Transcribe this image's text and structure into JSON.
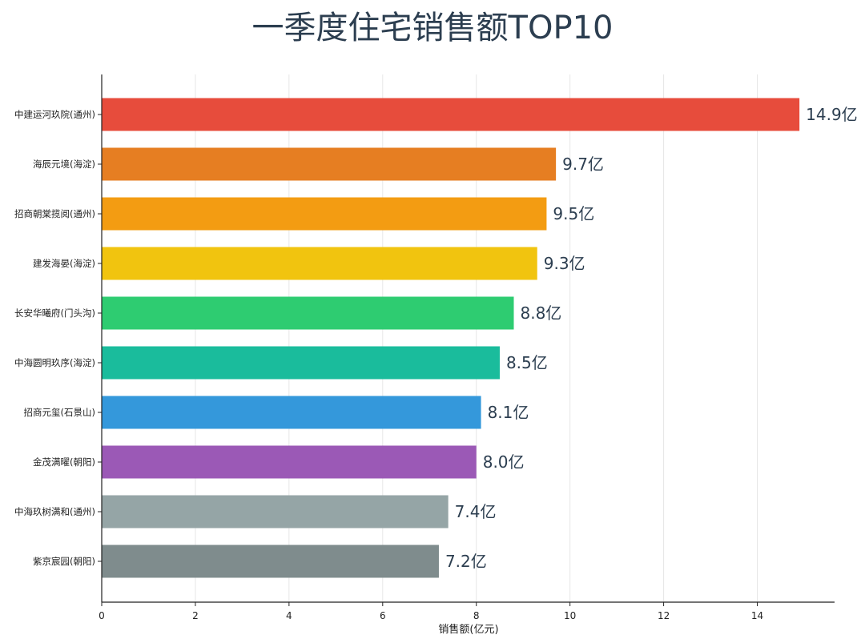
{
  "chart_data": {
    "type": "bar",
    "orientation": "horizontal",
    "title": "一季度住宅销售额TOP10",
    "xlabel": "销售额(亿元)",
    "ylabel": "",
    "xlim": [
      0,
      15.65
    ],
    "xticks": [
      0,
      2,
      4,
      6,
      8,
      10,
      12,
      14
    ],
    "grid": "vertical",
    "value_suffix": "亿",
    "categories": [
      "中建运河玖院(通州)",
      "海辰元境(海淀)",
      "招商朝棠揽阅(通州)",
      "建发海晏(海淀)",
      "长安华曦府(门头沟)",
      "中海圆明玖序(海淀)",
      "招商元玺(石景山)",
      "金茂满曜(朝阳)",
      "中海玖树满和(通州)",
      "紫京宸园(朝阳)"
    ],
    "values": [
      14.9,
      9.7,
      9.5,
      9.3,
      8.8,
      8.5,
      8.1,
      8.0,
      7.4,
      7.2
    ],
    "data_labels": [
      "14.9亿",
      "9.7亿",
      "9.5亿",
      "9.3亿",
      "8.8亿",
      "8.5亿",
      "8.1亿",
      "8.0亿",
      "7.4亿",
      "7.2亿"
    ],
    "colors": [
      "#e74c3c",
      "#e67e22",
      "#f39c12",
      "#f1c40f",
      "#2ecc71",
      "#1abc9c",
      "#3498db",
      "#9b59b6",
      "#95a5a6",
      "#7f8c8d"
    ]
  }
}
